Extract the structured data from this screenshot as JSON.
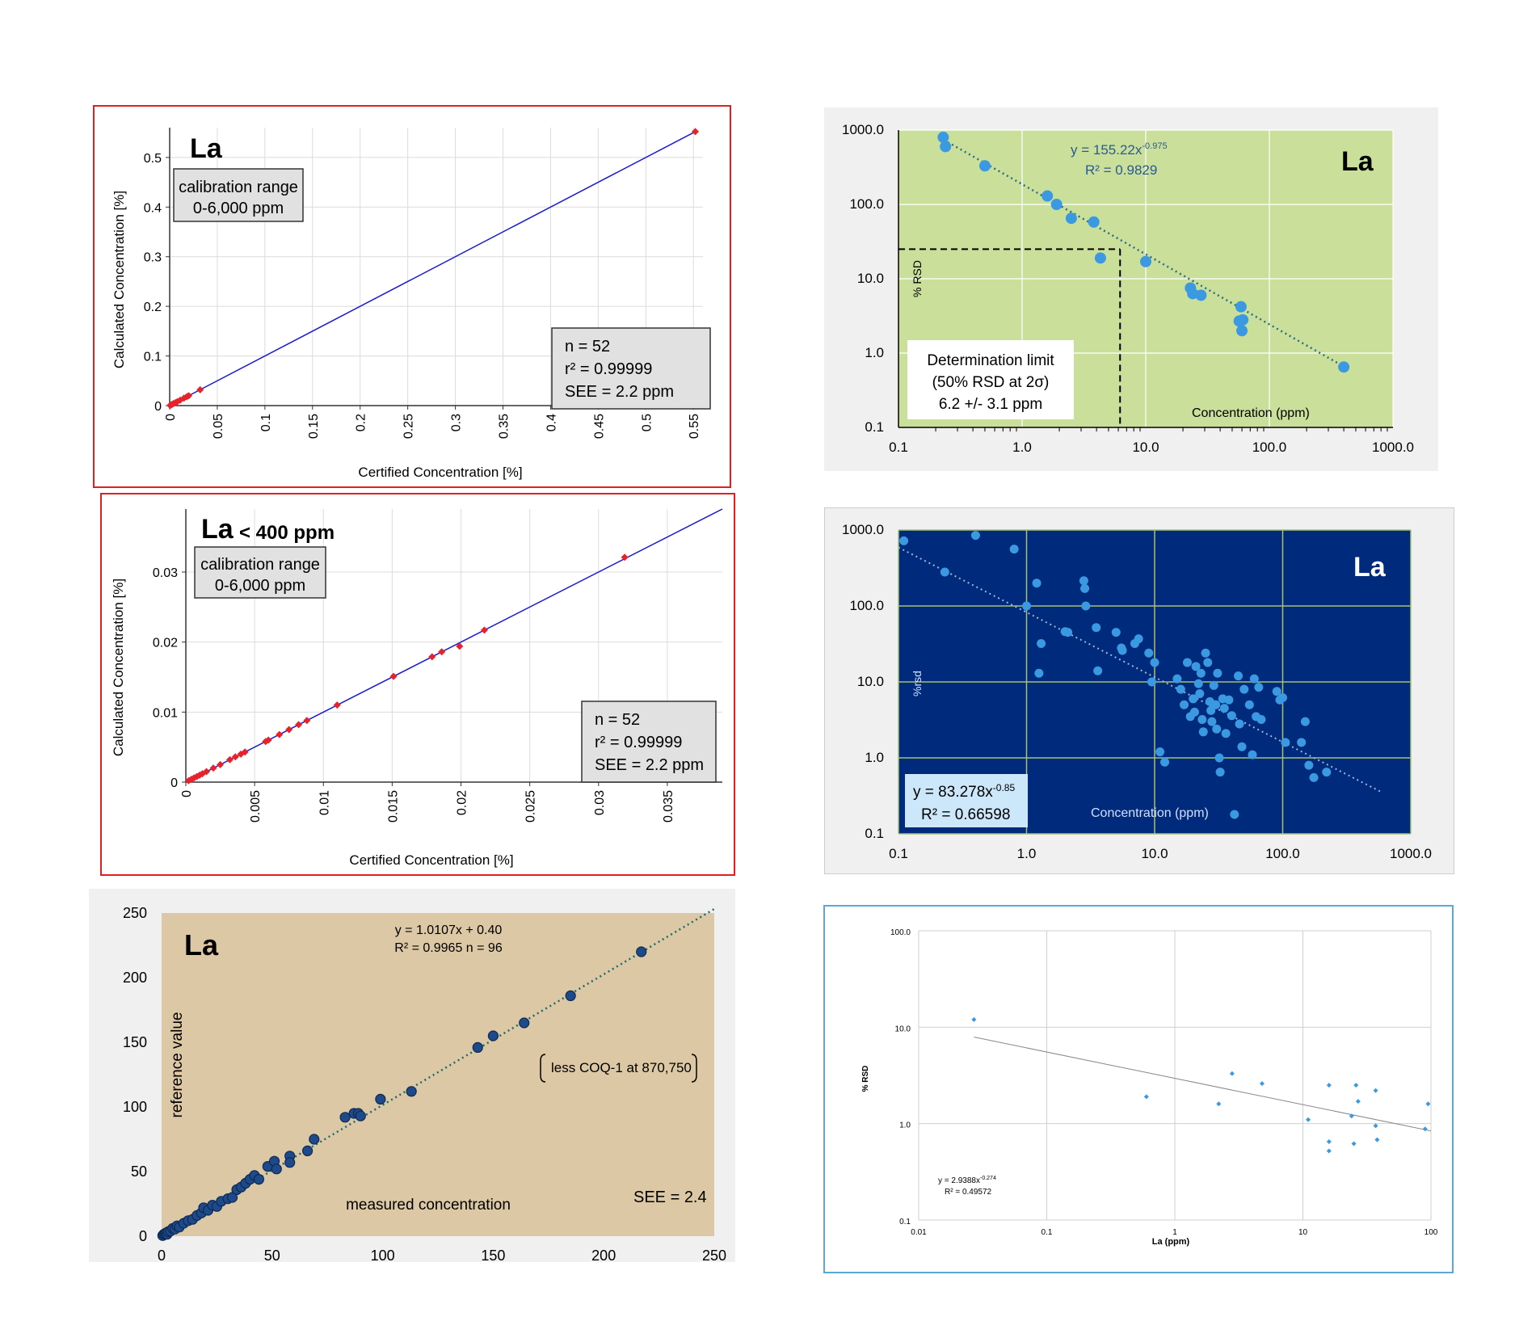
{
  "colors": {
    "red_frame": "#e02020",
    "blue_line": "#1a1acc",
    "red_marker": "#e8222a",
    "green_bg": "#cadf9a",
    "grey_bg": "#f0f0f0",
    "navy_bg": "#002a7c",
    "tan_bg": "#dcc8a4",
    "point_blue": "#3a99e0",
    "dark_point": "#1e4a8a",
    "light_blue_frame": "#5aa8d8"
  },
  "chart_data": [
    {
      "type": "scatter",
      "title": "La",
      "xlabel": "Certified Concentration [%]",
      "ylabel": "Calculated Concentration [%]",
      "x_ticks": [
        "0",
        "0.05",
        "0.1",
        "0.15",
        "0.2",
        "0.25",
        "0.3",
        "0.35",
        "0.4",
        "0.45",
        "0.5",
        "0.55"
      ],
      "y_ticks": [
        "0",
        "0.1",
        "0.2",
        "0.3",
        "0.4",
        "0.5"
      ],
      "xlim": [
        0,
        0.56
      ],
      "ylim": [
        0,
        0.56
      ],
      "grid": true,
      "box_top": [
        "calibration range",
        "0-6,000 ppm"
      ],
      "box_stats": [
        "n = 52",
        "r² = 0.99999",
        "SEE = 2.2 ppm"
      ],
      "fit_line": [
        [
          0,
          0
        ],
        [
          0.552,
          0.552
        ]
      ],
      "points": [
        {
          "x": 0.0005,
          "y": 0.0005
        },
        {
          "x": 0.0015,
          "y": 0.0015
        },
        {
          "x": 0.0025,
          "y": 0.0025
        },
        {
          "x": 0.004,
          "y": 0.004
        },
        {
          "x": 0.006,
          "y": 0.006
        },
        {
          "x": 0.008,
          "y": 0.008
        },
        {
          "x": 0.011,
          "y": 0.011
        },
        {
          "x": 0.015,
          "y": 0.015
        },
        {
          "x": 0.018,
          "y": 0.018
        },
        {
          "x": 0.02,
          "y": 0.02
        },
        {
          "x": 0.032,
          "y": 0.032
        },
        {
          "x": 0.552,
          "y": 0.552
        }
      ]
    },
    {
      "type": "scatter",
      "title": "La",
      "subtitle": "< 400 ppm",
      "xlabel": "Certified Concentration [%]",
      "ylabel": "Calculated Concentration [%]",
      "x_ticks": [
        "0",
        "0.005",
        "0.01",
        "0.015",
        "0.02",
        "0.025",
        "0.03",
        "0.035"
      ],
      "y_ticks": [
        "0",
        "0.01",
        "0.02",
        "0.03"
      ],
      "xlim": [
        0,
        0.039
      ],
      "ylim": [
        0,
        0.039
      ],
      "grid": true,
      "box_top": [
        "calibration range",
        "0-6,000 ppm"
      ],
      "box_stats": [
        "n = 52",
        "r² = 0.99999",
        "SEE = 2.2 ppm"
      ],
      "fit_line": [
        [
          0,
          0
        ],
        [
          0.039,
          0.039
        ]
      ],
      "points": [
        {
          "x": 0.0002,
          "y": 0.0002
        },
        {
          "x": 0.0004,
          "y": 0.0004
        },
        {
          "x": 0.0006,
          "y": 0.0006
        },
        {
          "x": 0.0008,
          "y": 0.0008
        },
        {
          "x": 0.001,
          "y": 0.001
        },
        {
          "x": 0.0012,
          "y": 0.0012
        },
        {
          "x": 0.0015,
          "y": 0.0015
        },
        {
          "x": 0.002,
          "y": 0.002
        },
        {
          "x": 0.0025,
          "y": 0.0025
        },
        {
          "x": 0.0032,
          "y": 0.0032
        },
        {
          "x": 0.0036,
          "y": 0.0036
        },
        {
          "x": 0.004,
          "y": 0.004
        },
        {
          "x": 0.0043,
          "y": 0.0043
        },
        {
          "x": 0.0058,
          "y": 0.0058
        },
        {
          "x": 0.006,
          "y": 0.006
        },
        {
          "x": 0.0068,
          "y": 0.0068
        },
        {
          "x": 0.0075,
          "y": 0.0075
        },
        {
          "x": 0.0082,
          "y": 0.0082
        },
        {
          "x": 0.0088,
          "y": 0.0088
        },
        {
          "x": 0.011,
          "y": 0.011
        },
        {
          "x": 0.0151,
          "y": 0.0151
        },
        {
          "x": 0.0179,
          "y": 0.0179
        },
        {
          "x": 0.0186,
          "y": 0.0186
        },
        {
          "x": 0.0199,
          "y": 0.0194
        },
        {
          "x": 0.0217,
          "y": 0.0217
        },
        {
          "x": 0.0319,
          "y": 0.0321
        }
      ]
    },
    {
      "type": "scatter",
      "title": "La",
      "xlabel": "measured concentration",
      "ylabel": "reference value",
      "x_ticks": [
        "0",
        "50",
        "100",
        "150",
        "200",
        "250"
      ],
      "y_ticks": [
        "0",
        "50",
        "100",
        "150",
        "200",
        "250"
      ],
      "xlim": [
        0,
        250
      ],
      "ylim": [
        0,
        250
      ],
      "grid": false,
      "equation": [
        "y = 1.0107x + 0.40",
        "R² = 0.9965   n = 96"
      ],
      "note": "less COQ-1 at 870,750",
      "see": "SEE = 2.4",
      "fit_line": [
        [
          0,
          0.4
        ],
        [
          250,
          253.1
        ]
      ],
      "points": [
        {
          "x": 0.5,
          "y": 0.5
        },
        {
          "x": 1,
          "y": 1.5
        },
        {
          "x": 1.5,
          "y": 2
        },
        {
          "x": 2,
          "y": 2.5
        },
        {
          "x": 2.5,
          "y": 1.5
        },
        {
          "x": 3,
          "y": 3.5
        },
        {
          "x": 4,
          "y": 4
        },
        {
          "x": 5,
          "y": 6
        },
        {
          "x": 6,
          "y": 5.5
        },
        {
          "x": 7,
          "y": 8
        },
        {
          "x": 8,
          "y": 7
        },
        {
          "x": 10,
          "y": 10
        },
        {
          "x": 12,
          "y": 12
        },
        {
          "x": 14,
          "y": 13
        },
        {
          "x": 16,
          "y": 16
        },
        {
          "x": 18,
          "y": 18
        },
        {
          "x": 19,
          "y": 22
        },
        {
          "x": 21,
          "y": 20
        },
        {
          "x": 23,
          "y": 24
        },
        {
          "x": 25,
          "y": 23
        },
        {
          "x": 27,
          "y": 27
        },
        {
          "x": 30,
          "y": 29
        },
        {
          "x": 32,
          "y": 30
        },
        {
          "x": 34,
          "y": 36
        },
        {
          "x": 36,
          "y": 38
        },
        {
          "x": 38,
          "y": 41
        },
        {
          "x": 40,
          "y": 44
        },
        {
          "x": 42,
          "y": 47
        },
        {
          "x": 44,
          "y": 44
        },
        {
          "x": 48,
          "y": 54
        },
        {
          "x": 51,
          "y": 58
        },
        {
          "x": 52,
          "y": 52
        },
        {
          "x": 58,
          "y": 62
        },
        {
          "x": 58,
          "y": 57
        },
        {
          "x": 66,
          "y": 66
        },
        {
          "x": 69,
          "y": 75
        },
        {
          "x": 83,
          "y": 92
        },
        {
          "x": 87,
          "y": 95
        },
        {
          "x": 89,
          "y": 95
        },
        {
          "x": 90,
          "y": 93
        },
        {
          "x": 99,
          "y": 106
        },
        {
          "x": 113,
          "y": 112
        },
        {
          "x": 143,
          "y": 146
        },
        {
          "x": 150,
          "y": 155
        },
        {
          "x": 164,
          "y": 165
        },
        {
          "x": 185,
          "y": 186
        },
        {
          "x": 217,
          "y": 220
        }
      ]
    },
    {
      "type": "scatter",
      "title": "La",
      "xlabel": "Concentration (ppm)",
      "ylabel": "% RSD",
      "x_ticks": [
        "0.1",
        "1.0",
        "10.0",
        "100.0",
        "1000.0"
      ],
      "y_ticks": [
        "0.1",
        "1.0",
        "10.0",
        "100.0",
        "1000.0"
      ],
      "xlim": [
        0.1,
        1000
      ],
      "ylim": [
        0.1,
        1000
      ],
      "x_scale": "log",
      "y_scale": "log",
      "grid": true,
      "equation": "y = 155.22x",
      "exponent": "-0.975",
      "r2": "R² = 0.9829",
      "box_lines": [
        "Determination limit",
        "(50% RSD at 2σ)",
        "6.2 +/- 3.1 ppm"
      ],
      "det_limit": {
        "x": 6.2,
        "y": 25
      },
      "fit_line": [
        [
          0.25,
          690
        ],
        [
          400,
          0.66
        ]
      ],
      "points": [
        {
          "x": 0.23,
          "y": 800
        },
        {
          "x": 0.24,
          "y": 600
        },
        {
          "x": 0.5,
          "y": 330
        },
        {
          "x": 1.6,
          "y": 130
        },
        {
          "x": 1.9,
          "y": 100
        },
        {
          "x": 2.5,
          "y": 65
        },
        {
          "x": 3.8,
          "y": 58
        },
        {
          "x": 4.3,
          "y": 19
        },
        {
          "x": 10,
          "y": 17
        },
        {
          "x": 23,
          "y": 7.5
        },
        {
          "x": 24,
          "y": 6.3
        },
        {
          "x": 28,
          "y": 6
        },
        {
          "x": 57,
          "y": 2.7
        },
        {
          "x": 59,
          "y": 4.2
        },
        {
          "x": 60,
          "y": 2
        },
        {
          "x": 61,
          "y": 2.8
        },
        {
          "x": 400,
          "y": 0.65
        }
      ]
    },
    {
      "type": "scatter",
      "title": "La",
      "xlabel": "Concentration (ppm)",
      "ylabel": "%rsd",
      "x_ticks": [
        "0.1",
        "1.0",
        "10.0",
        "100.0",
        "1000.0"
      ],
      "y_ticks": [
        "0.1",
        "1.0",
        "10.0",
        "100.0",
        "1000.0"
      ],
      "xlim": [
        0.1,
        1000
      ],
      "ylim": [
        0.1,
        1000
      ],
      "x_scale": "log",
      "y_scale": "log",
      "grid": true,
      "equation": "y = 83.278x",
      "exponent": "-0.85",
      "r2": "R² = 0.66598",
      "fit_line": [
        [
          0.1,
          590
        ],
        [
          600,
          0.35
        ]
      ],
      "points": [
        {
          "x": 0.11,
          "y": 720
        },
        {
          "x": 0.23,
          "y": 280
        },
        {
          "x": 0.4,
          "y": 850
        },
        {
          "x": 0.8,
          "y": 560
        },
        {
          "x": 1.0,
          "y": 100
        },
        {
          "x": 1.2,
          "y": 200
        },
        {
          "x": 1.3,
          "y": 32
        },
        {
          "x": 1.25,
          "y": 13
        },
        {
          "x": 2,
          "y": 46
        },
        {
          "x": 2.1,
          "y": 45
        },
        {
          "x": 2.8,
          "y": 215
        },
        {
          "x": 2.85,
          "y": 170
        },
        {
          "x": 2.9,
          "y": 100
        },
        {
          "x": 3.5,
          "y": 52
        },
        {
          "x": 3.6,
          "y": 14
        },
        {
          "x": 5,
          "y": 45
        },
        {
          "x": 5.5,
          "y": 28
        },
        {
          "x": 5.6,
          "y": 26
        },
        {
          "x": 7,
          "y": 32
        },
        {
          "x": 7.5,
          "y": 37
        },
        {
          "x": 9,
          "y": 24
        },
        {
          "x": 10,
          "y": 18
        },
        {
          "x": 9.5,
          "y": 10
        },
        {
          "x": 11,
          "y": 1.2
        },
        {
          "x": 12,
          "y": 0.88
        },
        {
          "x": 15,
          "y": 11
        },
        {
          "x": 16,
          "y": 8
        },
        {
          "x": 17,
          "y": 5
        },
        {
          "x": 18,
          "y": 18
        },
        {
          "x": 19,
          "y": 3.5
        },
        {
          "x": 20,
          "y": 6
        },
        {
          "x": 20.5,
          "y": 4
        },
        {
          "x": 21,
          "y": 16
        },
        {
          "x": 22,
          "y": 9.5
        },
        {
          "x": 22.5,
          "y": 7
        },
        {
          "x": 23,
          "y": 13
        },
        {
          "x": 23.5,
          "y": 3.2
        },
        {
          "x": 24,
          "y": 2.2
        },
        {
          "x": 25,
          "y": 24
        },
        {
          "x": 26,
          "y": 18
        },
        {
          "x": 27,
          "y": 5.5
        },
        {
          "x": 27.5,
          "y": 4.2
        },
        {
          "x": 28,
          "y": 3
        },
        {
          "x": 29,
          "y": 9
        },
        {
          "x": 30,
          "y": 5
        },
        {
          "x": 30.5,
          "y": 2.4
        },
        {
          "x": 31,
          "y": 13
        },
        {
          "x": 32,
          "y": 1.0
        },
        {
          "x": 32.5,
          "y": 0.65
        },
        {
          "x": 34,
          "y": 6
        },
        {
          "x": 35,
          "y": 4.5
        },
        {
          "x": 36,
          "y": 2.1
        },
        {
          "x": 38,
          "y": 5.8
        },
        {
          "x": 40,
          "y": 3.6
        },
        {
          "x": 42,
          "y": 0.18
        },
        {
          "x": 45,
          "y": 12
        },
        {
          "x": 46,
          "y": 2.8
        },
        {
          "x": 48,
          "y": 1.4
        },
        {
          "x": 50,
          "y": 8
        },
        {
          "x": 55,
          "y": 5
        },
        {
          "x": 58,
          "y": 1.1
        },
        {
          "x": 60,
          "y": 11
        },
        {
          "x": 62,
          "y": 3.5
        },
        {
          "x": 65,
          "y": 8.5
        },
        {
          "x": 68,
          "y": 3.2
        },
        {
          "x": 90,
          "y": 7.5
        },
        {
          "x": 95,
          "y": 5.8
        },
        {
          "x": 100,
          "y": 6.2
        },
        {
          "x": 105,
          "y": 1.6
        },
        {
          "x": 140,
          "y": 1.6
        },
        {
          "x": 150,
          "y": 3
        },
        {
          "x": 160,
          "y": 0.8
        },
        {
          "x": 175,
          "y": 0.55
        },
        {
          "x": 220,
          "y": 0.65
        }
      ]
    },
    {
      "type": "scatter",
      "xlabel": "La (ppm)",
      "ylabel": "% RSD",
      "x_ticks": [
        "0.01",
        "0.1",
        "1",
        "10",
        "100"
      ],
      "y_ticks": [
        "0.1",
        "1.0",
        "10.0",
        "100.0"
      ],
      "xlim": [
        0.01,
        100
      ],
      "ylim": [
        0.1,
        100
      ],
      "x_scale": "log",
      "y_scale": "log",
      "grid": true,
      "equation": "y = 2.9388x",
      "exponent": "-0.274",
      "r2": "R² = 0.49572",
      "fit_line": [
        [
          0.027,
          7.9
        ],
        [
          100,
          0.84
        ]
      ],
      "points": [
        {
          "x": 0.027,
          "y": 12
        },
        {
          "x": 0.6,
          "y": 1.9
        },
        {
          "x": 2.2,
          "y": 1.6
        },
        {
          "x": 2.8,
          "y": 3.3
        },
        {
          "x": 4.8,
          "y": 2.6
        },
        {
          "x": 11,
          "y": 1.1
        },
        {
          "x": 16,
          "y": 2.5
        },
        {
          "x": 16,
          "y": 0.65
        },
        {
          "x": 16,
          "y": 0.52
        },
        {
          "x": 24,
          "y": 1.2
        },
        {
          "x": 25,
          "y": 0.62
        },
        {
          "x": 26,
          "y": 2.5
        },
        {
          "x": 27,
          "y": 1.7
        },
        {
          "x": 37,
          "y": 2.2
        },
        {
          "x": 37,
          "y": 0.95
        },
        {
          "x": 38,
          "y": 0.68
        },
        {
          "x": 90,
          "y": 0.88
        },
        {
          "x": 95,
          "y": 1.6
        }
      ]
    }
  ]
}
